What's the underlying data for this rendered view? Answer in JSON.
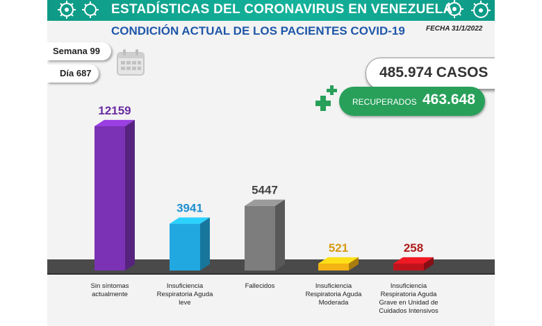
{
  "header": {
    "title": "ESTADÍSTICAS DEL CORONAVIRUS EN VENEZUELA",
    "subtitle": "CONDICIÓN ACTUAL DE LOS PACIENTES COVID-19",
    "date": "FECHA 31/1/2022"
  },
  "week_label": "Semana 99",
  "day_label": "Día 687",
  "totals": {
    "cases_text": "485.974 CASOS",
    "recovered_label": "RECUPERADOS",
    "recovered_value": "463.648"
  },
  "icons": [
    "virus-icon",
    "calendar-icon",
    "plus-icon"
  ],
  "colors": {
    "banner": "#14b29b",
    "subtitle": "#1f57a8",
    "recovered": "#28a05a"
  },
  "chart_data": {
    "type": "bar",
    "categories": [
      "Sin síntomas actualmente",
      "Insuficiencia Respiratoria Aguda leve",
      "Fallecidos",
      "Insuficiencia Respiratoria Aguda Moderada",
      "Insuficiencia Respiratoria Aguda Grave en Unidad de Cuidados Intensivos"
    ],
    "values": [
      12159,
      3941,
      5447,
      521,
      258
    ],
    "value_labels": [
      "12159",
      "3941",
      "5447",
      "521",
      "258"
    ],
    "colors": [
      "#7b32b4",
      "#22a8e0",
      "#7d7d7d",
      "#f2b313",
      "#c0141d"
    ],
    "label_colors": [
      "#6a2ca0",
      "#1e8fd0",
      "#444444",
      "#d79a10",
      "#b01a1a"
    ],
    "legend": "none",
    "grid": false
  }
}
